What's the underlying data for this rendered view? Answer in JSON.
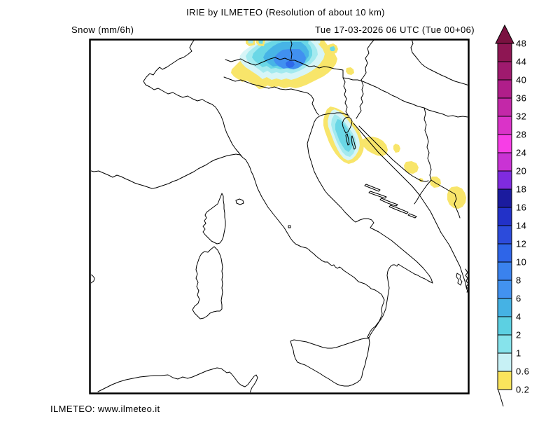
{
  "header": {
    "title": "IRIE by ILMETEO (Resolution of about 10 km)",
    "parameter_label": "Snow (mm/6h)",
    "valid_time_label": "Tue 17-03-2026 06 UTC (Tue 00+06)"
  },
  "footer": {
    "credit": "ILMETEO: www.ilmeteo.it"
  },
  "legend": {
    "tick_labels": [
      "48",
      "44",
      "40",
      "36",
      "32",
      "28",
      "24",
      "20",
      "18",
      "16",
      "14",
      "12",
      "10",
      "8",
      "6",
      "4",
      "2",
      "1",
      "0.6",
      "0.2"
    ],
    "box_colors": [
      "#8E1653",
      "#9F1A6E",
      "#B01E8A",
      "#C328A8",
      "#DA33C8",
      "#F73EE6",
      "#C933D4",
      "#7F2BDF",
      "#1B1B9E",
      "#2231C8",
      "#2C4BDB",
      "#2E65E8",
      "#3A82EE",
      "#4292F0",
      "#45B2E4",
      "#5CD0E2",
      "#86E3EB",
      "#C7F1F5",
      "#FAE45C"
    ],
    "arrow_color": "#7A1240",
    "outline_color": "#000000"
  },
  "map": {
    "sea_color": "#FFFFFF",
    "line_color": "#000000",
    "level_colors": {
      "l02": "#F8E56A",
      "l06": "#D7F5F7",
      "l1": "#A3EAEF",
      "l2": "#6AD7E6",
      "l4": "#47B4E6",
      "l6": "#4190F0",
      "l8": "#2F6AEA"
    }
  }
}
